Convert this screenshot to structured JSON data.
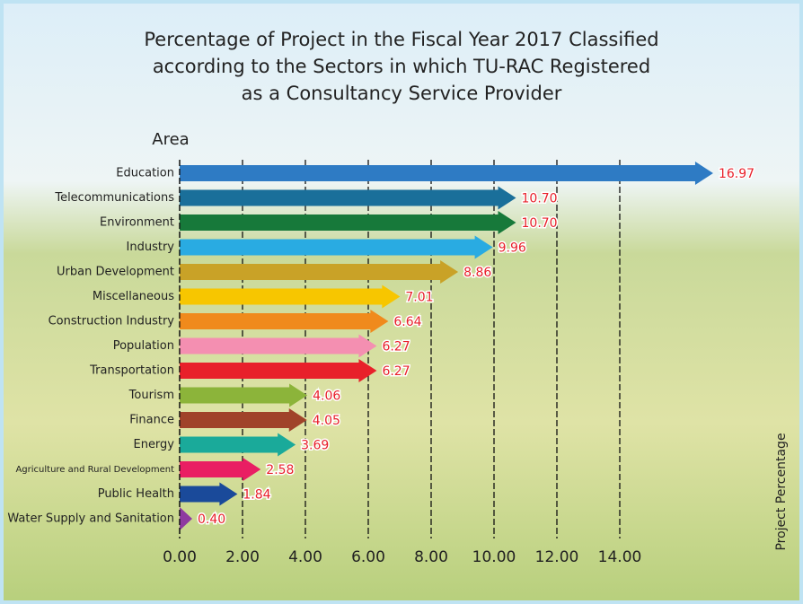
{
  "chart_data": {
    "type": "arrow-bar",
    "title": [
      "Percentage of Project in the Fiscal Year 2017 Classified",
      "according to the Sectors in which TU-RAC Registered",
      "as a Consultancy Service Provider"
    ],
    "y_label": "Area",
    "x_label": "Project Percentage",
    "categories": [
      "Education",
      "Telecommunications",
      "Environment",
      "Industry",
      "Urban Development",
      "Miscellaneous",
      "Construction Industry",
      "Population",
      "Transportation",
      "Tourism",
      "Finance",
      "Energy",
      "Agriculture and Rural Development",
      "Public Health",
      "Water Supply and Sanitation"
    ],
    "values": [
      16.97,
      10.7,
      10.7,
      9.96,
      8.86,
      7.01,
      6.64,
      6.27,
      6.27,
      4.06,
      4.05,
      3.69,
      2.58,
      1.84,
      0.4
    ],
    "value_labels": [
      "16.97",
      "10.70",
      "10.70",
      "9.96",
      "8.86",
      "7.01",
      "6.64",
      "6.27",
      "6.27",
      "4.06",
      "4.05",
      "3.69",
      "2.58",
      "1.84",
      "0.40"
    ],
    "colors": [
      "#2e7bc4",
      "#1a6f9a",
      "#17793a",
      "#29abe2",
      "#c9a227",
      "#f7c600",
      "#f08a1c",
      "#f48fb1",
      "#e8202a",
      "#8cb43a",
      "#a0432a",
      "#1aaa9a",
      "#e91e63",
      "#1a4a9a",
      "#8e3aa0"
    ],
    "xlim": [
      0,
      17.5
    ],
    "xticks": [
      {
        "value": 0,
        "label": "0.00"
      },
      {
        "value": 2,
        "label": "2.00"
      },
      {
        "value": 4,
        "label": "4.00"
      },
      {
        "value": 6,
        "label": "6.00"
      },
      {
        "value": 8,
        "label": "8.00"
      },
      {
        "value": 10,
        "label": "10.00"
      },
      {
        "value": 12,
        "label": "12.00"
      },
      {
        "value": 14,
        "label": "14.00"
      }
    ],
    "grid": true
  }
}
